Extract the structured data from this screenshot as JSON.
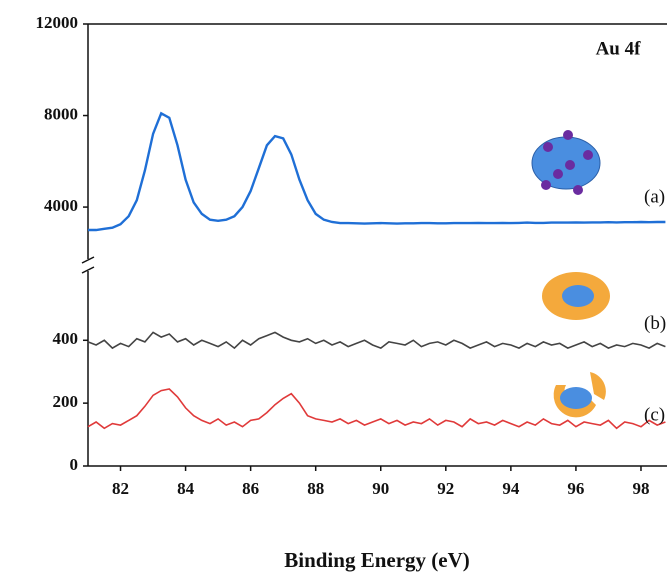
{
  "chart_data": [
    {
      "type": "line",
      "annotation": "Au 4f",
      "x": [
        81,
        81.25,
        81.5,
        81.75,
        82,
        82.25,
        82.5,
        82.75,
        83,
        83.25,
        83.5,
        83.75,
        84,
        84.25,
        84.5,
        84.75,
        85,
        85.25,
        85.5,
        85.75,
        86,
        86.25,
        86.5,
        86.75,
        87,
        87.25,
        87.5,
        87.75,
        88,
        88.25,
        88.5,
        88.75,
        89,
        89.25,
        89.5,
        89.75,
        90,
        90.25,
        90.5,
        90.75,
        91,
        91.25,
        91.5,
        91.75,
        92,
        92.25,
        92.5,
        92.75,
        93,
        93.25,
        93.5,
        93.75,
        94,
        94.25,
        94.5,
        94.75,
        95,
        95.25,
        95.5,
        95.75,
        96,
        96.25,
        96.5,
        96.75,
        97,
        97.25,
        97.5,
        97.75,
        98,
        98.25,
        98.5,
        98.75
      ],
      "series": [
        {
          "name": "(a)",
          "color": "#1f6fd6",
          "values": [
            3000,
            3000,
            3050,
            3100,
            3250,
            3600,
            4300,
            5600,
            7200,
            8100,
            7900,
            6700,
            5200,
            4200,
            3700,
            3450,
            3400,
            3450,
            3600,
            4000,
            4700,
            5700,
            6700,
            7100,
            7000,
            6300,
            5200,
            4300,
            3700,
            3450,
            3350,
            3300,
            3300,
            3290,
            3280,
            3290,
            3300,
            3290,
            3280,
            3290,
            3290,
            3300,
            3300,
            3290,
            3290,
            3300,
            3300,
            3300,
            3310,
            3300,
            3300,
            3310,
            3300,
            3310,
            3320,
            3310,
            3310,
            3320,
            3320,
            3320,
            3330,
            3320,
            3330,
            3330,
            3340,
            3330,
            3340,
            3340,
            3350,
            3340,
            3350,
            3350
          ]
        }
      ],
      "xlim": [
        81,
        98.8
      ],
      "ylim": [
        1600,
        12000
      ],
      "yticks": [
        4000,
        8000,
        12000
      ]
    },
    {
      "type": "line",
      "xlabel": "Binding Energy (eV)",
      "x": [
        81,
        81.25,
        81.5,
        81.75,
        82,
        82.25,
        82.5,
        82.75,
        83,
        83.25,
        83.5,
        83.75,
        84,
        84.25,
        84.5,
        84.75,
        85,
        85.25,
        85.5,
        85.75,
        86,
        86.25,
        86.5,
        86.75,
        87,
        87.25,
        87.5,
        87.75,
        88,
        88.25,
        88.5,
        88.75,
        89,
        89.25,
        89.5,
        89.75,
        90,
        90.25,
        90.5,
        90.75,
        91,
        91.25,
        91.5,
        91.75,
        92,
        92.25,
        92.5,
        92.75,
        93,
        93.25,
        93.5,
        93.75,
        94,
        94.25,
        94.5,
        94.75,
        95,
        95.25,
        95.5,
        95.75,
        96,
        96.25,
        96.5,
        96.75,
        97,
        97.25,
        97.5,
        97.75,
        98,
        98.25,
        98.5,
        98.75
      ],
      "series": [
        {
          "name": "(b)",
          "color": "#444444",
          "values": [
            395,
            385,
            400,
            375,
            390,
            380,
            405,
            395,
            425,
            410,
            420,
            395,
            405,
            385,
            400,
            390,
            380,
            395,
            375,
            400,
            385,
            405,
            415,
            425,
            410,
            400,
            395,
            405,
            390,
            400,
            385,
            395,
            380,
            390,
            400,
            385,
            375,
            395,
            390,
            385,
            400,
            380,
            390,
            395,
            385,
            400,
            390,
            375,
            385,
            395,
            380,
            390,
            385,
            375,
            390,
            380,
            395,
            385,
            390,
            375,
            385,
            395,
            380,
            390,
            375,
            385,
            380,
            390,
            385,
            375,
            390,
            380
          ]
        },
        {
          "name": "(c)",
          "color": "#e03a3a",
          "values": [
            125,
            140,
            120,
            135,
            130,
            145,
            160,
            190,
            225,
            240,
            245,
            220,
            185,
            160,
            145,
            135,
            150,
            130,
            140,
            125,
            145,
            150,
            170,
            195,
            215,
            230,
            200,
            160,
            150,
            145,
            140,
            150,
            135,
            145,
            130,
            140,
            150,
            135,
            145,
            130,
            140,
            135,
            150,
            130,
            145,
            140,
            125,
            150,
            135,
            140,
            130,
            145,
            135,
            125,
            140,
            130,
            150,
            135,
            130,
            145,
            125,
            140,
            135,
            130,
            145,
            120,
            140,
            135,
            125,
            145,
            130,
            140
          ]
        }
      ],
      "xlim": [
        81,
        98.8
      ],
      "xticks": [
        82,
        84,
        86,
        88,
        90,
        92,
        94,
        96,
        98
      ],
      "ylim": [
        0,
        630
      ],
      "yticks": [
        0,
        200,
        400
      ]
    }
  ]
}
